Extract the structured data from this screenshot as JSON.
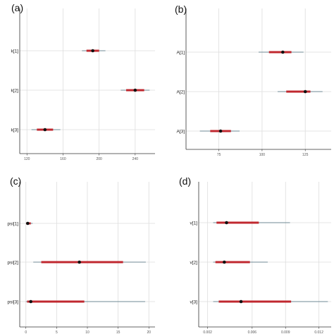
{
  "chart_data": [
    {
      "type": "interval",
      "panel_label": "(a)",
      "params": [
        "k[1]",
        "k[2]",
        "k[3]"
      ],
      "x_ticks": [
        120,
        160,
        200,
        240
      ],
      "xlim": [
        112,
        262
      ],
      "intervals": [
        {
          "param": "k[1]",
          "median": 193,
          "inner": [
            186,
            200
          ],
          "outer": [
            181,
            207
          ]
        },
        {
          "param": "k[2]",
          "median": 240,
          "inner": [
            230,
            250
          ],
          "outer": [
            224,
            256
          ]
        },
        {
          "param": "k[3]",
          "median": 140,
          "inner": [
            131,
            149
          ],
          "outer": [
            125,
            157
          ]
        }
      ]
    },
    {
      "type": "interval",
      "panel_label": "(b)",
      "params": [
        "A[1]",
        "A[2]",
        "A[3]"
      ],
      "x_ticks": [
        75,
        100,
        125
      ],
      "xlim": [
        56,
        140
      ],
      "intervals": [
        {
          "param": "A[1]",
          "median": 112,
          "inner": [
            104,
            117
          ],
          "outer": [
            98,
            124
          ]
        },
        {
          "param": "A[2]",
          "median": 125,
          "inner": [
            114,
            128
          ],
          "outer": [
            109,
            135
          ]
        },
        {
          "param": "A[3]",
          "median": 76,
          "inner": [
            70,
            82
          ],
          "outer": [
            64,
            87
          ]
        }
      ]
    },
    {
      "type": "interval",
      "panel_label": "(c)",
      "params": [
        "psi[1]",
        "psi[2]",
        "psi[3]"
      ],
      "x_ticks": [
        0,
        5,
        10,
        15,
        20
      ],
      "xlim": [
        -1,
        21
      ],
      "intervals": [
        {
          "param": "psi[1]",
          "median": 0.3,
          "inner": [
            0.05,
            0.8
          ],
          "outer": [
            0.0,
            1.1
          ]
        },
        {
          "param": "psi[2]",
          "median": 8.7,
          "inner": [
            2.5,
            15.8
          ],
          "outer": [
            1.2,
            19.5
          ]
        },
        {
          "param": "psi[3]",
          "median": 0.8,
          "inner": [
            0.2,
            9.5
          ],
          "outer": [
            0.0,
            19.4
          ]
        }
      ]
    },
    {
      "type": "interval",
      "panel_label": "(d)",
      "params": [
        "v[1]",
        "v[2]",
        "v[3]"
      ],
      "x_ticks": [
        0.002,
        0.006,
        0.009,
        0.012
      ],
      "xlim": [
        0.0012,
        0.0131
      ],
      "intervals": [
        {
          "param": "v[1]",
          "median": 0.0037,
          "inner": [
            0.0028,
            0.0066
          ],
          "outer": [
            0.0025,
            0.0094
          ]
        },
        {
          "param": "v[2]",
          "median": 0.0035,
          "inner": [
            0.0027,
            0.0058
          ],
          "outer": [
            0.0025,
            0.0074
          ]
        },
        {
          "param": "v[3]",
          "median": 0.005,
          "inner": [
            0.003,
            0.0095
          ],
          "outer": [
            0.0025,
            0.0128
          ]
        }
      ]
    }
  ],
  "colors": {
    "inner": "#c0282f",
    "outer": "#6f8a94",
    "point": "#111111",
    "grid": "#dddddd",
    "axis": "#333333"
  }
}
